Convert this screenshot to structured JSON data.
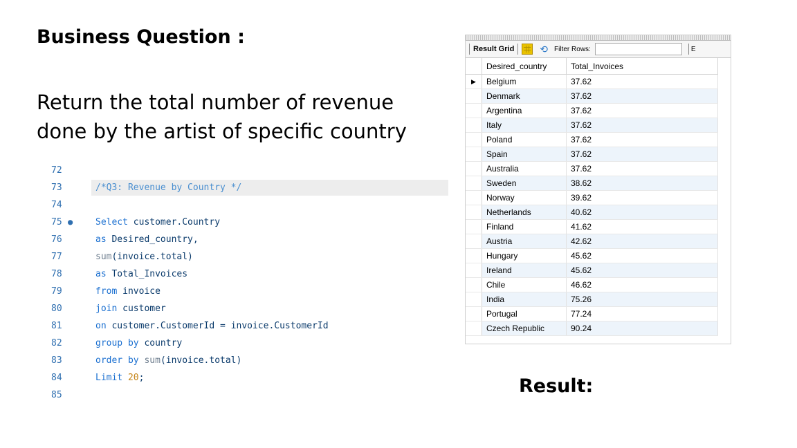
{
  "heading": "Business Question :",
  "question": "Return the total number of revenue done by the artist of specific country",
  "result_label": "Result:",
  "editor": {
    "lines": [
      {
        "num": "72",
        "tokens": []
      },
      {
        "num": "73",
        "highlight": true,
        "tokens": [
          {
            "t": "/*Q3: Revenue by Country */",
            "c": "cm"
          }
        ]
      },
      {
        "num": "74",
        "tokens": []
      },
      {
        "num": "75",
        "marker": "●",
        "tokens": [
          {
            "t": "Select",
            "c": "kw"
          },
          {
            "t": " customer.Country",
            "c": "id"
          }
        ]
      },
      {
        "num": "76",
        "tokens": [
          {
            "t": "as",
            "c": "kw"
          },
          {
            "t": " Desired_country,",
            "c": "id"
          }
        ]
      },
      {
        "num": "77",
        "tokens": [
          {
            "t": "sum",
            "c": "fn"
          },
          {
            "t": "(invoice.total)",
            "c": "id"
          }
        ]
      },
      {
        "num": "78",
        "tokens": [
          {
            "t": "as",
            "c": "kw"
          },
          {
            "t": " Total_Invoices",
            "c": "id"
          }
        ]
      },
      {
        "num": "79",
        "tokens": [
          {
            "t": "from",
            "c": "kw"
          },
          {
            "t": " invoice",
            "c": "id"
          }
        ]
      },
      {
        "num": "80",
        "tokens": [
          {
            "t": "join",
            "c": "kw"
          },
          {
            "t": " customer",
            "c": "id"
          }
        ]
      },
      {
        "num": "81",
        "tokens": [
          {
            "t": "on",
            "c": "kw"
          },
          {
            "t": " customer.CustomerId = invoice.CustomerId",
            "c": "id"
          }
        ]
      },
      {
        "num": "82",
        "tokens": [
          {
            "t": "group by",
            "c": "kw"
          },
          {
            "t": " country",
            "c": "id"
          }
        ]
      },
      {
        "num": "83",
        "tokens": [
          {
            "t": "order by",
            "c": "kw"
          },
          {
            "t": " ",
            "c": "id"
          },
          {
            "t": "sum",
            "c": "fn"
          },
          {
            "t": "(invoice.total)",
            "c": "id"
          }
        ]
      },
      {
        "num": "84",
        "tokens": [
          {
            "t": "Limit",
            "c": "kw"
          },
          {
            "t": " ",
            "c": "id"
          },
          {
            "t": "20",
            "c": "num"
          },
          {
            "t": ";",
            "c": "id"
          }
        ]
      },
      {
        "num": "85",
        "tokens": []
      }
    ]
  },
  "result_grid": {
    "title": "Result Grid",
    "filter_label": "Filter Rows:",
    "filter_value": "",
    "truncated_label": "E",
    "columns": [
      "Desired_country",
      "Total_Invoices"
    ],
    "current_row_marker": "▶",
    "rows": [
      [
        "Belgium",
        "37.62"
      ],
      [
        "Denmark",
        "37.62"
      ],
      [
        "Argentina",
        "37.62"
      ],
      [
        "Italy",
        "37.62"
      ],
      [
        "Poland",
        "37.62"
      ],
      [
        "Spain",
        "37.62"
      ],
      [
        "Australia",
        "37.62"
      ],
      [
        "Sweden",
        "38.62"
      ],
      [
        "Norway",
        "39.62"
      ],
      [
        "Netherlands",
        "40.62"
      ],
      [
        "Finland",
        "41.62"
      ],
      [
        "Austria",
        "42.62"
      ],
      [
        "Hungary",
        "45.62"
      ],
      [
        "Ireland",
        "45.62"
      ],
      [
        "Chile",
        "46.62"
      ],
      [
        "India",
        "75.26"
      ],
      [
        "Portugal",
        "77.24"
      ],
      [
        "Czech Republic",
        "90.24"
      ]
    ]
  }
}
